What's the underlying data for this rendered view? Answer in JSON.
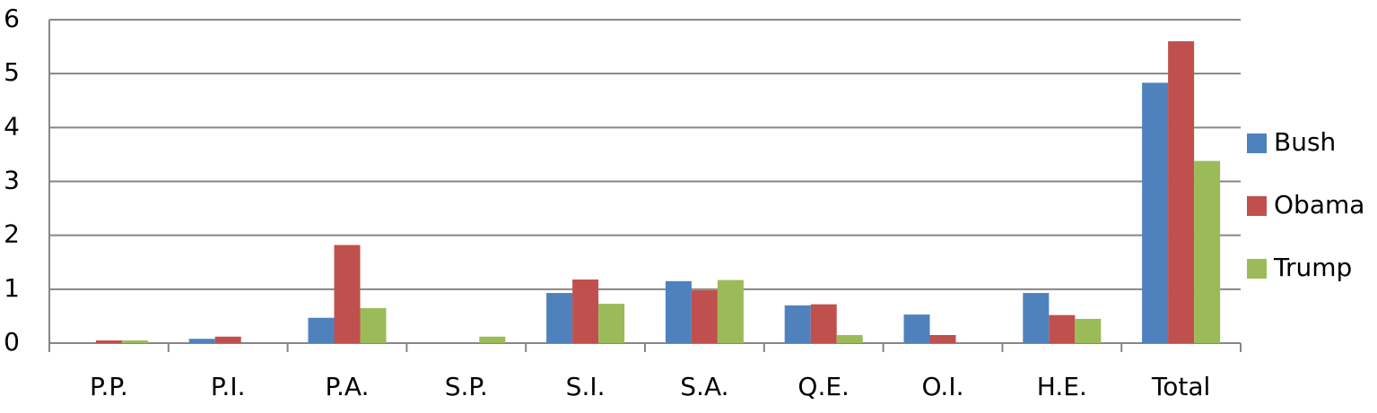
{
  "chart_data": {
    "type": "bar",
    "categories": [
      "P.P.",
      "P.I.",
      "P.A.",
      "S.P.",
      "S.I.",
      "S.A.",
      "Q.E.",
      "O.I.",
      "H.E.",
      "Total"
    ],
    "series": [
      {
        "name": "Bush",
        "color": "#4f81bd",
        "values": [
          0,
          0.08,
          0.47,
          0,
          0.93,
          1.15,
          0.7,
          0.53,
          0.93,
          4.83
        ]
      },
      {
        "name": "Obama",
        "color": "#c0504d",
        "values": [
          0.05,
          0.12,
          1.82,
          0,
          1.18,
          0.98,
          0.72,
          0.15,
          0.52,
          5.6
        ]
      },
      {
        "name": "Trump",
        "color": "#9bbb59",
        "values": [
          0.05,
          0,
          0.65,
          0.12,
          0.73,
          1.17,
          0.15,
          0,
          0.45,
          3.38
        ]
      }
    ],
    "ylim": [
      0,
      6
    ],
    "yticks": [
      0,
      1,
      2,
      3,
      4,
      5,
      6
    ],
    "grid": true,
    "legend": "right"
  }
}
